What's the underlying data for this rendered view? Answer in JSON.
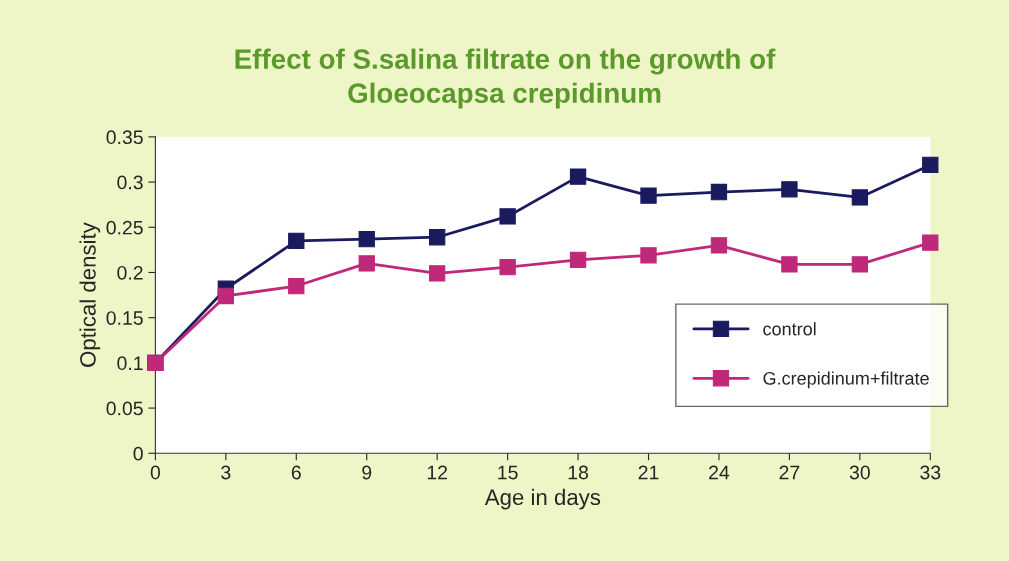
{
  "chart_data": {
    "type": "line",
    "title": "Effect of S.salina filtrate on the growth of\nGloeocapsa crepidinum",
    "xlabel": "Age in days",
    "ylabel": "Optical density",
    "x": [
      0,
      3,
      6,
      9,
      12,
      15,
      18,
      21,
      24,
      27,
      30,
      33
    ],
    "series": [
      {
        "name": "control",
        "color": "#1a1a5e",
        "values": [
          0.1,
          0.182,
          0.235,
          0.237,
          0.239,
          0.262,
          0.306,
          0.285,
          0.289,
          0.292,
          0.283,
          0.319
        ]
      },
      {
        "name": "G.crepidinum+filtrate",
        "color": "#c0287a",
        "values": [
          0.1,
          0.174,
          0.185,
          0.21,
          0.199,
          0.206,
          0.214,
          0.219,
          0.23,
          0.209,
          0.209,
          0.233
        ]
      }
    ],
    "xlim": [
      0,
      33
    ],
    "xticks": [
      0,
      3,
      6,
      9,
      12,
      15,
      18,
      21,
      24,
      27,
      30,
      33
    ],
    "ylim": [
      0,
      0.35
    ],
    "yticks": [
      0,
      0.05,
      0.1,
      0.15,
      0.2,
      0.25,
      0.3,
      0.35
    ],
    "grid": false,
    "legend": "right",
    "marker": "square",
    "line_style": "solid"
  }
}
